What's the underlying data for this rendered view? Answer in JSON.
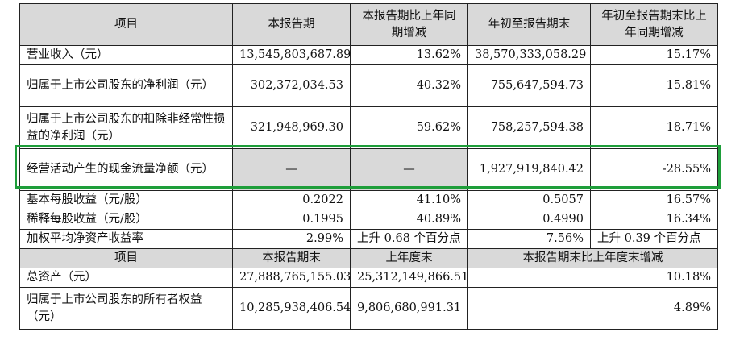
{
  "header1": {
    "item": "项目",
    "current_period": "本报告期",
    "current_change": "本报告期比上年同期增减",
    "ytd": "年初至报告期末",
    "ytd_change": "年初至报告期末比上年同期增减"
  },
  "rows1": [
    {
      "label": "营业收入（元）",
      "current": "13,545,803,687.89",
      "change": "13.62%",
      "ytd": "38,570,333,058.29",
      "ytd_change": "15.17%"
    },
    {
      "label": "归属于上市公司股东的净利润（元）",
      "current": "302,372,034.53",
      "change": "40.32%",
      "ytd": "755,647,594.73",
      "ytd_change": "15.81%"
    },
    {
      "label": "归属于上市公司股东的扣除非经常性损益的净利润（元）",
      "current": "321,948,969.30",
      "change": "59.62%",
      "ytd": "758,257,594.38",
      "ytd_change": "18.71%"
    },
    {
      "label": "经营活动产生的现金流量净额（元）",
      "current": "—",
      "change": "—",
      "ytd": "1,927,919,840.42",
      "ytd_change": "-28.55%"
    },
    {
      "label": "基本每股收益（元/股）",
      "current": "0.2022",
      "change": "41.10%",
      "ytd": "0.5057",
      "ytd_change": "16.57%"
    },
    {
      "label": "稀释每股收益（元/股）",
      "current": "0.1995",
      "change": "40.89%",
      "ytd": "0.4990",
      "ytd_change": "16.34%"
    },
    {
      "label": "加权平均净资产收益率",
      "current": "2.99%",
      "change": "上升 0.68 个百分点",
      "ytd": "7.56%",
      "ytd_change": "上升 0.39 个百分点"
    }
  ],
  "header2": {
    "item": "项目",
    "period_end": "本报告期末",
    "prior_year_end": "上年度末",
    "change": "本报告期末比上年度末增减"
  },
  "rows2": [
    {
      "label": "总资产（元）",
      "period_end": "27,888,765,155.03",
      "prior_year_end": "25,312,149,866.51",
      "change": "10.18%"
    },
    {
      "label": "归属于上市公司股东的所有者权益（元）",
      "period_end": "10,285,938,406.54",
      "prior_year_end": "9,806,680,991.31",
      "change": "4.89%"
    }
  ],
  "colors": {
    "highlight": "#1e9e3a",
    "header_bg": "#d9d9d9"
  }
}
